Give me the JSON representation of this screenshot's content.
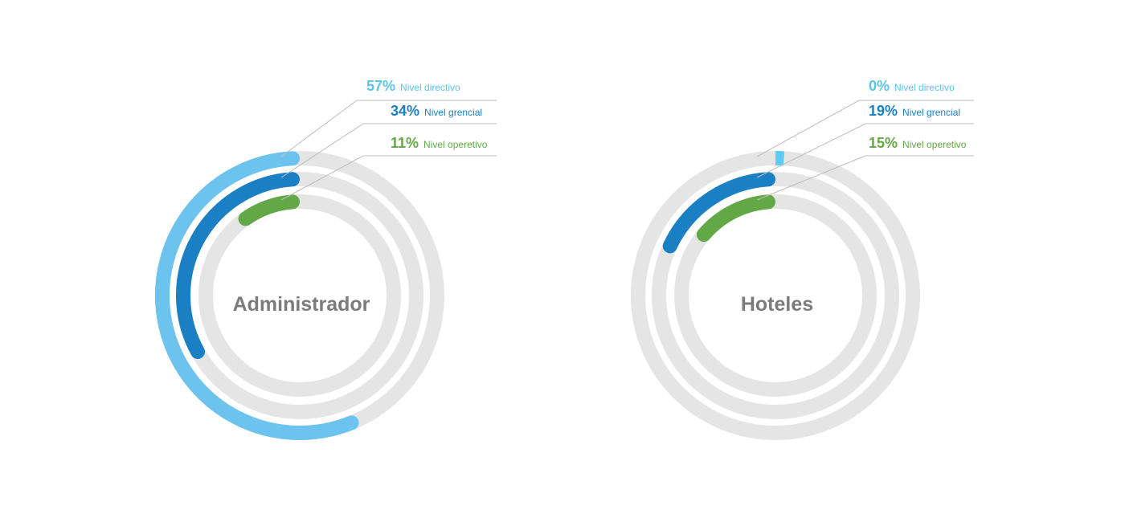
{
  "colors": {
    "track": "#e5e5e5",
    "leader": "#bdbdbd",
    "center_text": "#7b7b7b"
  },
  "chart_data": [
    {
      "type": "radial-bar",
      "title": "Administrador",
      "series": [
        {
          "name": "Nivel directivo",
          "value": 57,
          "value_label": "57%",
          "color": "#6cc3ee",
          "text_color": "#5bc3ea"
        },
        {
          "name": "Nivel grencial",
          "value": 34,
          "value_label": "34%",
          "color": "#1b7fc4",
          "text_color": "#1b7fc4"
        },
        {
          "name": "Nivel operetivo",
          "value": 11,
          "value_label": "11%",
          "color": "#62a846",
          "text_color": "#62a846"
        }
      ]
    },
    {
      "type": "radial-bar",
      "title": "Hoteles",
      "series": [
        {
          "name": "Nivel directivo",
          "value": 0,
          "value_label": "0%",
          "color": "#5bcdf2",
          "text_color": "#5bc3ea"
        },
        {
          "name": "Nivel grencial",
          "value": 19,
          "value_label": "19%",
          "color": "#1b7fc4",
          "text_color": "#1b7fc4"
        },
        {
          "name": "Nivel operetivo",
          "value": 15,
          "value_label": "15%",
          "color": "#62a846",
          "text_color": "#62a846"
        }
      ]
    }
  ]
}
